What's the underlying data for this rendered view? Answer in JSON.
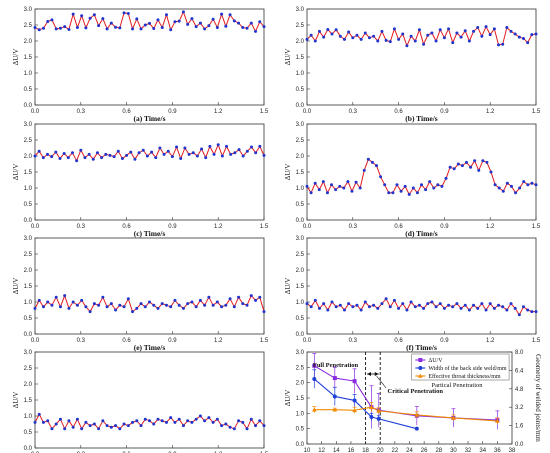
{
  "colors": {
    "segment": "#e31a1c",
    "marker": "#2233cc",
    "delta_u": "#8a2be2",
    "back_width": "#1f3fd8",
    "throat": "#f08a00"
  },
  "chart_data": [
    {
      "id": "a",
      "type": "line",
      "ylabel": "ΔU/V",
      "caption": "(a) Time/s",
      "xlim": [
        0,
        1.5
      ],
      "ylim": [
        0,
        3
      ],
      "xticks": [
        0.0,
        0.3,
        0.6,
        0.9,
        1.2,
        1.5
      ],
      "xtick_labels": [
        "0.0",
        "0.3",
        "0.6",
        "0.9",
        "1.2",
        "1.5"
      ],
      "yticks": [
        0,
        0.5,
        1,
        1.5,
        2,
        2.5,
        3
      ],
      "ytick_labels": [
        "0.0",
        "0.5",
        "1.0",
        "1.5",
        "2.0",
        "2.5",
        "3.0"
      ],
      "y": [
        2.42,
        2.35,
        2.4,
        2.61,
        2.66,
        2.38,
        2.4,
        2.45,
        2.36,
        2.84,
        2.42,
        2.79,
        2.41,
        2.71,
        2.82,
        2.48,
        2.7,
        2.38,
        2.56,
        2.43,
        2.41,
        2.88,
        2.86,
        2.38,
        2.69,
        2.38,
        2.5,
        2.55,
        2.39,
        2.66,
        2.42,
        2.82,
        2.35,
        2.6,
        2.62,
        2.91,
        2.52,
        2.7,
        2.45,
        2.56,
        2.38,
        2.48,
        2.68,
        2.42,
        2.84,
        2.46,
        2.82,
        2.63,
        2.56,
        2.42,
        2.4,
        2.56,
        2.3,
        2.6,
        2.45
      ]
    },
    {
      "id": "b",
      "type": "line",
      "ylabel": "ΔU/V",
      "caption": "(b) Time/s",
      "xlim": [
        0,
        1.5
      ],
      "ylim": [
        0,
        3
      ],
      "xticks": [
        0.0,
        0.3,
        0.6,
        0.9,
        1.2,
        1.5
      ],
      "xtick_labels": [
        "0.0",
        "0.3",
        "0.6",
        "0.9",
        "1.2",
        "1.5"
      ],
      "yticks": [
        0,
        0.5,
        1,
        1.5,
        2,
        2.5,
        3
      ],
      "ytick_labels": [
        "0.0",
        "0.5",
        "1.0",
        "1.5",
        "2.0",
        "2.5",
        "3.0"
      ],
      "y": [
        2.05,
        2.18,
        2.0,
        2.3,
        2.12,
        2.36,
        2.22,
        2.35,
        2.15,
        2.05,
        2.28,
        2.1,
        2.18,
        2.05,
        2.25,
        2.1,
        2.15,
        2.0,
        2.3,
        2.02,
        1.98,
        2.38,
        2.05,
        2.22,
        1.85,
        2.15,
        2.0,
        2.35,
        1.9,
        2.18,
        2.25,
        2.0,
        2.35,
        2.1,
        2.38,
        1.95,
        2.25,
        2.12,
        2.32,
        2.0,
        2.3,
        2.42,
        2.15,
        2.45,
        2.2,
        2.38,
        1.88,
        1.9,
        2.42,
        2.3,
        2.22,
        2.12,
        2.08,
        1.95,
        2.2,
        2.22
      ]
    },
    {
      "id": "c",
      "type": "line",
      "ylabel": "ΔU/V",
      "caption": "(c) Time/s",
      "xlim": [
        0,
        1.5
      ],
      "ylim": [
        0,
        3
      ],
      "xticks": [
        0.0,
        0.3,
        0.6,
        0.9,
        1.2,
        1.5
      ],
      "xtick_labels": [
        "0.0",
        "0.3",
        "0.6",
        "0.9",
        "1.2",
        "1.5"
      ],
      "yticks": [
        0,
        0.5,
        1,
        1.5,
        2,
        2.5,
        3
      ],
      "ytick_labels": [
        "0.0",
        "0.5",
        "1.0",
        "1.5",
        "2.0",
        "2.5",
        "3.0"
      ],
      "y": [
        2.0,
        2.15,
        1.95,
        2.05,
        1.98,
        2.12,
        1.92,
        2.08,
        1.95,
        2.1,
        1.85,
        2.18,
        1.95,
        2.05,
        1.9,
        2.1,
        1.95,
        2.05,
        2.02,
        1.98,
        2.15,
        1.92,
        2.02,
        2.12,
        1.9,
        2.1,
        2.18,
        2.0,
        2.12,
        1.95,
        2.25,
        2.05,
        2.15,
        1.98,
        2.28,
        1.92,
        2.25,
        2.05,
        2.1,
        2.0,
        2.22,
        1.95,
        2.3,
        2.05,
        2.35,
        2.0,
        2.3,
        2.05,
        2.1,
        2.2,
        2.0,
        2.15,
        2.28,
        2.1,
        2.3,
        2.02
      ]
    },
    {
      "id": "d",
      "type": "line",
      "ylabel": "ΔU/V",
      "caption": "(d) Time/s",
      "xlim": [
        0,
        1.5
      ],
      "ylim": [
        0,
        3
      ],
      "xticks": [
        0.0,
        0.3,
        0.6,
        0.9,
        1.2,
        1.5
      ],
      "xtick_labels": [
        "0.0",
        "0.3",
        "0.6",
        "0.9",
        "1.2",
        "1.5"
      ],
      "yticks": [
        0,
        0.5,
        1,
        1.5,
        2,
        2.5,
        3
      ],
      "ytick_labels": [
        "0.0",
        "0.5",
        "1.0",
        "1.5",
        "2.0",
        "2.5",
        "3.0"
      ],
      "y": [
        1.05,
        0.85,
        1.15,
        0.95,
        1.2,
        0.85,
        1.1,
        0.95,
        1.05,
        1.0,
        1.2,
        0.9,
        1.18,
        1.0,
        1.55,
        1.9,
        1.8,
        1.7,
        1.35,
        1.1,
        0.85,
        0.85,
        1.1,
        0.9,
        1.05,
        0.8,
        1.0,
        0.85,
        1.1,
        0.95,
        1.2,
        1.0,
        1.1,
        1.05,
        1.3,
        1.65,
        1.6,
        1.75,
        1.7,
        1.8,
        1.65,
        1.85,
        1.55,
        1.85,
        1.8,
        1.5,
        1.1,
        1.0,
        0.9,
        1.15,
        1.05,
        0.85,
        1.0,
        1.2,
        1.1,
        1.15,
        1.1
      ]
    },
    {
      "id": "e",
      "type": "line",
      "ylabel": "ΔU/V",
      "caption": "(e) Time/s",
      "xlim": [
        0,
        1.5
      ],
      "ylim": [
        0,
        3
      ],
      "xticks": [
        0.0,
        0.3,
        0.6,
        0.9,
        1.2,
        1.5
      ],
      "xtick_labels": [
        "0.0",
        "0.3",
        "0.6",
        "0.9",
        "1.2",
        "1.5"
      ],
      "yticks": [
        0,
        0.5,
        1,
        1.5,
        2,
        2.5,
        3
      ],
      "ytick_labels": [
        "0.0",
        "0.5",
        "1.0",
        "1.5",
        "2.0",
        "2.5",
        "3.0"
      ],
      "y": [
        0.8,
        1.05,
        0.85,
        1.0,
        0.9,
        1.15,
        0.85,
        1.2,
        0.8,
        1.0,
        0.9,
        1.05,
        0.85,
        0.7,
        0.95,
        0.9,
        1.15,
        0.85,
        0.95,
        0.75,
        0.9,
        0.85,
        1.1,
        0.7,
        0.8,
        0.95,
        0.85,
        1.0,
        0.9,
        0.8,
        0.95,
        0.9,
        0.85,
        1.05,
        0.9,
        0.8,
        0.95,
        1.0,
        0.85,
        1.05,
        0.9,
        1.15,
        0.9,
        1.0,
        0.85,
        0.9,
        1.1,
        0.85,
        1.15,
        0.95,
        0.9,
        1.2,
        1.05,
        1.15,
        0.7
      ]
    },
    {
      "id": "f",
      "type": "line",
      "ylabel": "ΔU/V",
      "caption": "(f) Time/s",
      "xlim": [
        0,
        1.5
      ],
      "ylim": [
        0,
        3
      ],
      "xticks": [
        0.0,
        0.3,
        0.6,
        0.9,
        1.2,
        1.5
      ],
      "xtick_labels": [
        "0.0",
        "0.3",
        "0.6",
        "0.9",
        "1.2",
        "1.5"
      ],
      "yticks": [
        0,
        0.5,
        1,
        1.5,
        2,
        2.5,
        3
      ],
      "ytick_labels": [
        "0.0",
        "0.5",
        "1.0",
        "1.5",
        "2.0",
        "2.5",
        "3.0"
      ],
      "y": [
        0.95,
        0.85,
        1.05,
        0.8,
        0.95,
        0.75,
        1.0,
        0.85,
        0.9,
        0.75,
        0.95,
        0.85,
        0.9,
        0.75,
        1.0,
        0.85,
        0.9,
        0.8,
        0.95,
        1.1,
        0.85,
        1.05,
        0.8,
        0.95,
        0.75,
        1.0,
        0.85,
        0.9,
        0.8,
        0.95,
        1.0,
        0.85,
        0.95,
        0.8,
        0.9,
        0.85,
        0.95,
        0.8,
        0.9,
        0.75,
        0.9,
        0.8,
        0.95,
        0.75,
        0.95,
        0.8,
        0.9,
        0.85,
        0.75,
        0.95,
        0.8,
        0.6,
        0.85,
        0.75,
        0.7,
        0.7
      ]
    },
    {
      "id": "g",
      "type": "line",
      "ylabel": "ΔU/V",
      "caption": "(g) Time/s",
      "xlim": [
        0,
        1.5
      ],
      "ylim": [
        0,
        3
      ],
      "xticks": [
        0.0,
        0.3,
        0.6,
        0.9,
        1.2,
        1.5
      ],
      "xtick_labels": [
        "0.0",
        "0.3",
        "0.6",
        "0.9",
        "1.2",
        "1.5"
      ],
      "yticks": [
        0,
        0.5,
        1,
        1.5,
        2,
        2.5,
        3
      ],
      "ytick_labels": [
        "0.0",
        "0.5",
        "1.0",
        "1.5",
        "2.0",
        "2.5",
        "3.0"
      ],
      "y": [
        0.8,
        1.05,
        0.8,
        0.85,
        0.6,
        0.75,
        0.9,
        0.6,
        0.85,
        0.65,
        0.9,
        0.6,
        0.8,
        0.7,
        0.75,
        0.6,
        0.85,
        0.7,
        0.65,
        0.7,
        0.6,
        0.75,
        0.7,
        0.8,
        0.85,
        0.7,
        0.9,
        0.85,
        0.75,
        0.9,
        0.85,
        0.8,
        0.95,
        0.8,
        0.9,
        0.7,
        0.85,
        0.8,
        0.9,
        1.0,
        0.85,
        0.95,
        0.8,
        0.9,
        0.7,
        0.75,
        0.65,
        0.6,
        0.85,
        0.8,
        0.6,
        0.9,
        0.7,
        0.85,
        0.7
      ]
    },
    {
      "id": "h",
      "type": "line",
      "ylabel": "ΔU/V",
      "ylabel_right": "Geometry of welded joints/mm",
      "caption": "(h) Welding velocity/cm*min⁻¹",
      "xlim": [
        10,
        38
      ],
      "ylim": [
        0,
        3
      ],
      "y2lim": [
        0,
        8
      ],
      "xticks": [
        10,
        12,
        14,
        16,
        18,
        20,
        22,
        24,
        26,
        28,
        30,
        32,
        34,
        36,
        38
      ],
      "xtick_labels": [
        "10",
        "12",
        "14",
        "16",
        "18",
        "20",
        "22",
        "24",
        "26",
        "28",
        "30",
        "32",
        "34",
        "36",
        "38"
      ],
      "yticks": [
        0,
        0.5,
        1,
        1.5,
        2,
        2.5,
        3
      ],
      "ytick_labels": [
        "0.0",
        "0.5",
        "1.0",
        "1.5",
        "2.0",
        "2.5",
        "3.0"
      ],
      "y2ticks": [
        0,
        1.6,
        3.2,
        4.8,
        6.4,
        8
      ],
      "y2tick_labels": [
        "0.0",
        "1.6",
        "3.2",
        "4.8",
        "6.4",
        "8.0"
      ],
      "series": [
        {
          "name": "ΔU/V",
          "axis": "left",
          "marker": "square",
          "x": [
            11,
            13.8,
            16.5,
            18.8,
            19.8,
            25,
            30,
            36
          ],
          "y": [
            2.55,
            2.15,
            2.05,
            1.2,
            1.1,
            0.92,
            0.85,
            0.78
          ],
          "err": [
            0.4,
            0.35,
            0.4,
            0.7,
            0.55,
            0.3,
            0.3,
            0.3
          ]
        },
        {
          "name": "Width of the back side weld/mm",
          "axis": "left",
          "marker": "circle",
          "x": [
            11,
            13.8,
            16.5,
            18.8,
            19.8,
            25
          ],
          "y": [
            2.12,
            1.55,
            1.42,
            0.88,
            0.82,
            0.5
          ],
          "err": [
            0.3,
            0.3,
            0.2,
            0.12,
            0.1,
            0
          ]
        },
        {
          "name": "Effective throat thickness/mm",
          "axis": "left",
          "marker": "triangle",
          "x": [
            11,
            13.8,
            16.5,
            18.8,
            19.8,
            25,
            30,
            36
          ],
          "y": [
            1.12,
            1.12,
            1.1,
            1.2,
            1.08,
            0.95,
            0.85,
            0.75
          ],
          "err": [
            0.1,
            0.05,
            0.1,
            0.15,
            0.1,
            0.1,
            0.1,
            0.1
          ]
        }
      ],
      "annotations": {
        "full": "Full Penetration",
        "critical": "Critical Penetration",
        "partial": "Partical Penetration"
      },
      "dashed_x": [
        18,
        20
      ]
    }
  ]
}
